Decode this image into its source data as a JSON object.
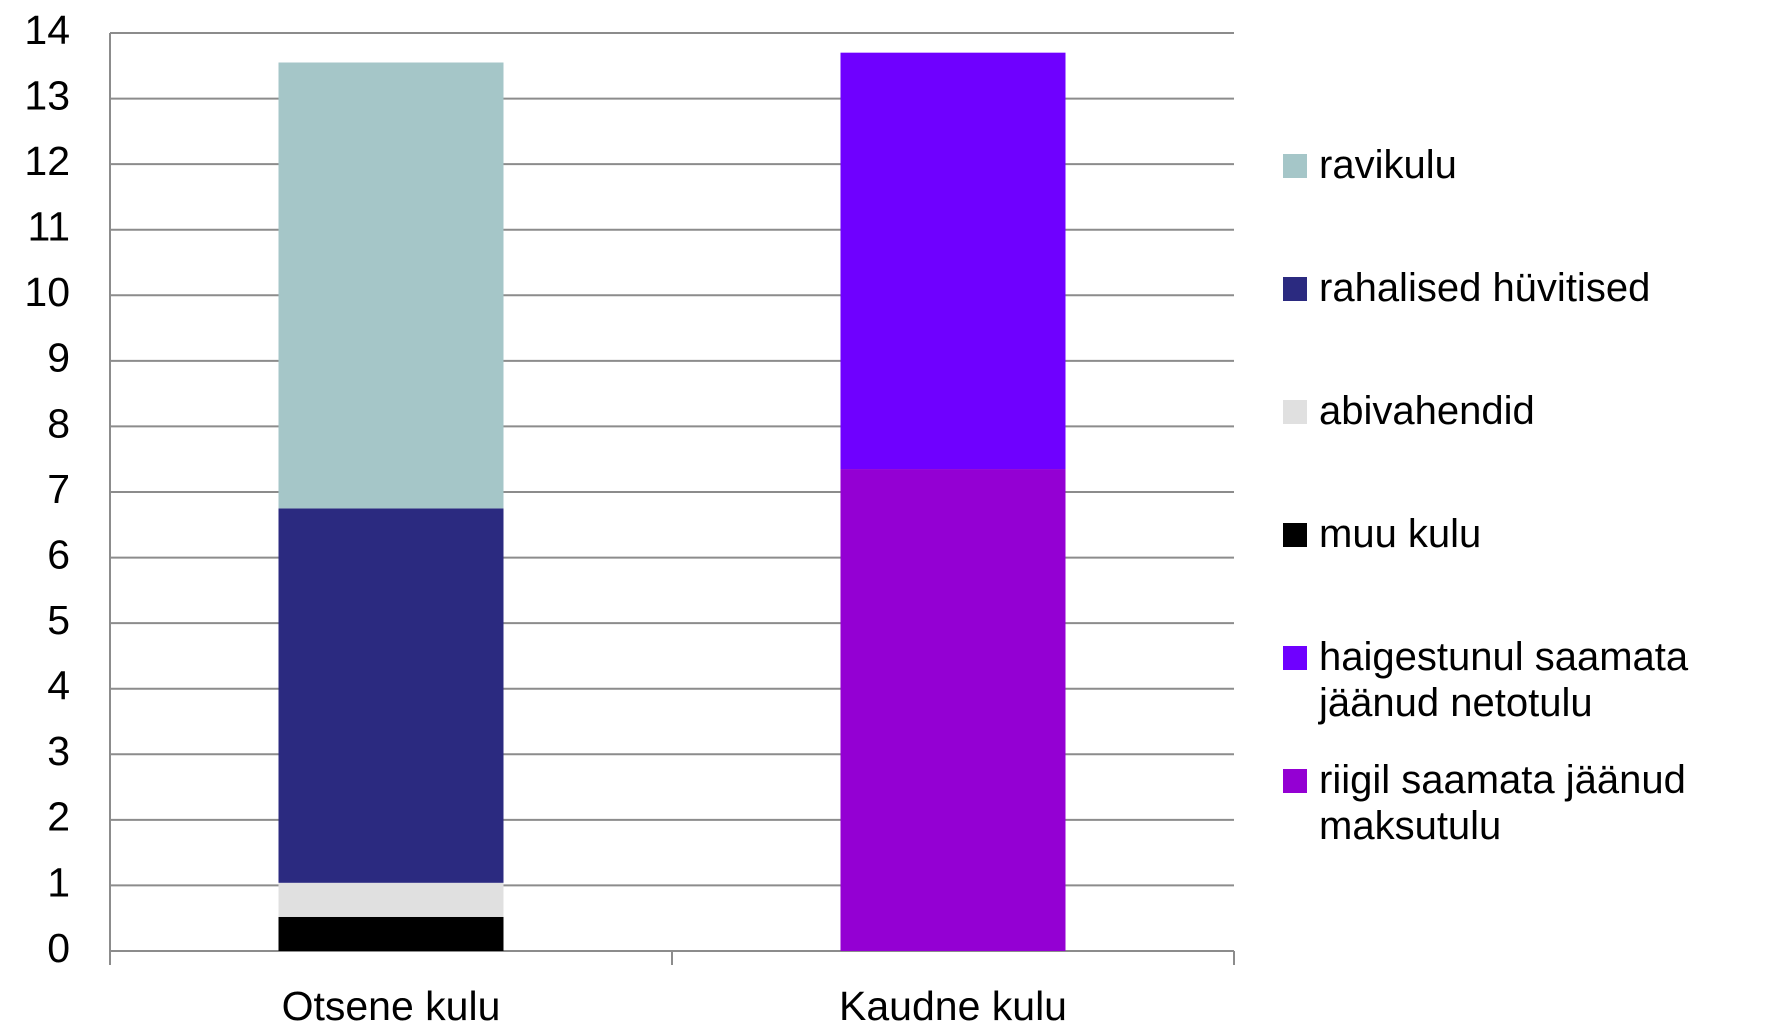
{
  "chart_data": {
    "type": "stacked_bar",
    "categories": [
      "Otsene kulu",
      "Kaudne kulu"
    ],
    "series": [
      {
        "name": "ravikulu",
        "color": "#a5c6c8",
        "values": [
          6.8,
          0
        ]
      },
      {
        "name": "rahalised hüvitised",
        "color": "#2b2a80",
        "values": [
          5.71,
          0
        ]
      },
      {
        "name": "abivahendid",
        "color": "#e0e0e0",
        "values": [
          0.52,
          0
        ]
      },
      {
        "name": "muu kulu",
        "color": "#000000",
        "values": [
          0.52,
          0
        ]
      },
      {
        "name": "haigestunul saamata jäänud netotulu",
        "color": "#6f00ff",
        "values": [
          0,
          6.35
        ]
      },
      {
        "name": "riigil saamata jäänud maksutulu",
        "color": "#9400d3",
        "values": [
          0,
          7.35
        ]
      }
    ],
    "ylim": [
      0,
      14
    ],
    "yticks": [
      0,
      1,
      2,
      3,
      4,
      5,
      6,
      7,
      8,
      9,
      10,
      11,
      12,
      13,
      14
    ],
    "grid": true,
    "legend": "right"
  }
}
